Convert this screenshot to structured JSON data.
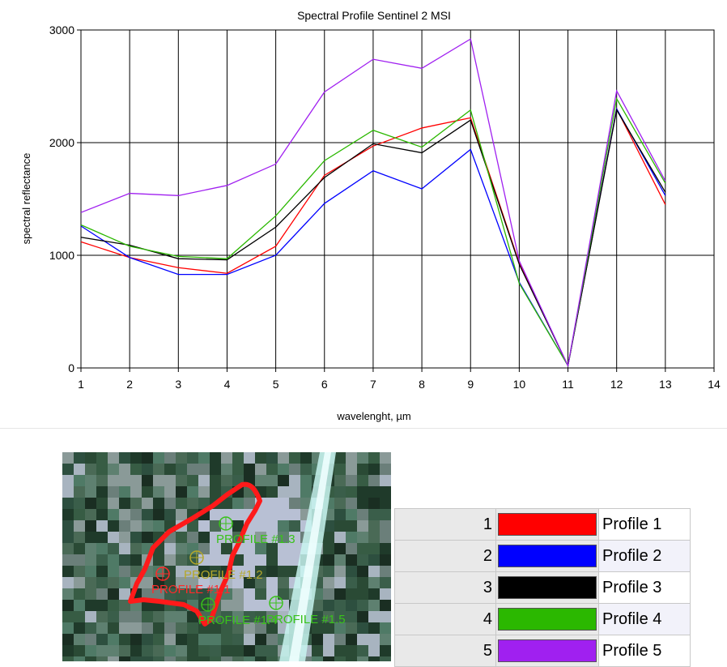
{
  "chart_data": {
    "type": "line",
    "title": "Spectral Profile  Sentinel 2 MSI",
    "xlabel": "wavelenght, µm",
    "ylabel": "spectral reflectance",
    "xlim": [
      1,
      14
    ],
    "ylim": [
      0,
      3000
    ],
    "xticks": [
      "1",
      "2",
      "3",
      "4",
      "5",
      "6",
      "7",
      "8",
      "9",
      "10",
      "11",
      "12",
      "13",
      "14"
    ],
    "yticks": [
      "0",
      "1000",
      "2000",
      "3000"
    ],
    "grid": true,
    "x": [
      1,
      2,
      3,
      4,
      5,
      6,
      7,
      8,
      9,
      10,
      11,
      12,
      13
    ],
    "series": [
      {
        "name": "Profile 1",
        "color": "#ff0000",
        "values": [
          1120,
          980,
          890,
          840,
          1080,
          1710,
          1970,
          2130,
          2220,
          930,
          20,
          2300,
          1450
        ]
      },
      {
        "name": "Profile 2",
        "color": "#0000ff",
        "values": [
          1260,
          980,
          830,
          830,
          1000,
          1460,
          1750,
          1590,
          1940,
          760,
          20,
          2300,
          1530
        ]
      },
      {
        "name": "Profile 3",
        "color": "#000000",
        "values": [
          1160,
          1090,
          970,
          960,
          1250,
          1690,
          1990,
          1910,
          2200,
          920,
          20,
          2290,
          1560
        ]
      },
      {
        "name": "Profile 4",
        "color": "#2bb800",
        "values": [
          1270,
          1080,
          990,
          970,
          1350,
          1840,
          2110,
          1960,
          2290,
          750,
          20,
          2390,
          1640
        ]
      },
      {
        "name": "Profile 5",
        "color": "#a020f0",
        "values": [
          1380,
          1550,
          1530,
          1620,
          1810,
          2450,
          2740,
          2660,
          2920,
          950,
          20,
          2460,
          1660
        ]
      }
    ]
  },
  "map": {
    "overlay_colors": {
      "polygon": "#ff1a1a",
      "p11": "#ff2a2a",
      "p12": "#b5a82a",
      "p13": "#39c21a",
      "p14": "#39c21a",
      "p15": "#39c21a"
    },
    "labels": {
      "p11": "PROFILE #1.1",
      "p12": "PROFILE #1.2",
      "p13": "PROFILE #1.3",
      "p14": "PROFILE #1.4",
      "p15": "PROFILE #1.5"
    }
  },
  "legend": [
    {
      "num": "1",
      "name": "Profile 1",
      "color": "#ff0000"
    },
    {
      "num": "2",
      "name": "Profile 2",
      "color": "#0000ff"
    },
    {
      "num": "3",
      "name": "Profile 3",
      "color": "#000000"
    },
    {
      "num": "4",
      "name": "Profile 4",
      "color": "#2bb800"
    },
    {
      "num": "5",
      "name": "Profile 5",
      "color": "#a020f0"
    }
  ]
}
